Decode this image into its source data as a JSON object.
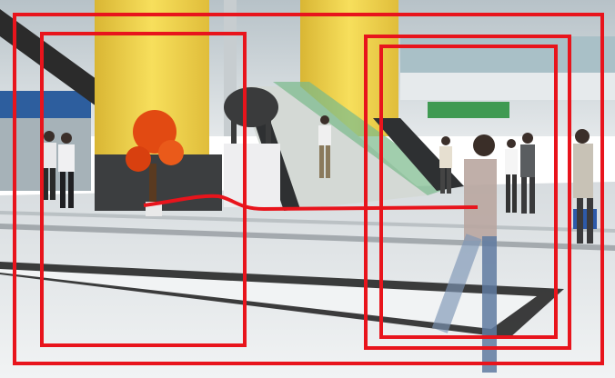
{
  "scene": {
    "description_free": true,
    "colors": {
      "overlay": "#e8141c",
      "pillar": "#f2d44a",
      "pillar_shadow": "#c9a52a",
      "floor_light": "#e9ecee",
      "floor_mid": "#cfd4d8",
      "stripe": "#1a1a1a",
      "ceiling": "#dfe3e6",
      "glass": "#9fb6c0",
      "green_rail": "#5aa15a",
      "plant_red": "#e24a12",
      "stairs": "#d8dcd8",
      "urn": "#3a3a3a",
      "plinth": "#efeff0"
    }
  },
  "overlay": {
    "color": "#e8141c",
    "box_count": 4,
    "has_trajectory": true
  }
}
